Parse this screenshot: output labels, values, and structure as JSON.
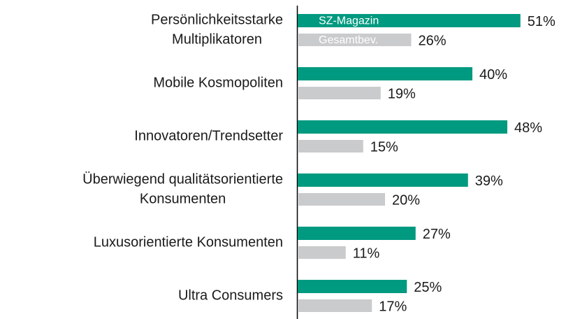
{
  "chart_data": {
    "type": "bar",
    "orientation": "horizontal",
    "categories": [
      [
        "Persönlichkeitsstarke",
        "Multiplikatoren"
      ],
      [
        "Mobile Kosmopoliten"
      ],
      [
        "Innovatoren/Trendsetter"
      ],
      [
        "Überwiegend qualitätsorientierte",
        "Konsumenten"
      ],
      [
        "Luxusorientierte Konsumenten"
      ],
      [
        "Ultra Consumers"
      ]
    ],
    "series": [
      {
        "name": "SZ-Magazin",
        "color": "#009a80",
        "values": [
          51,
          40,
          48,
          39,
          27,
          25
        ],
        "value_labels": [
          "51%",
          "40%",
          "48%",
          "39%",
          "27%",
          "25%"
        ]
      },
      {
        "name": "Gesamtbev.",
        "color": "#c9cbcc",
        "values": [
          26,
          19,
          15,
          20,
          11,
          17
        ],
        "value_labels": [
          "26%",
          "19%",
          "15%",
          "20%",
          "11%",
          "17%"
        ]
      }
    ]
  }
}
